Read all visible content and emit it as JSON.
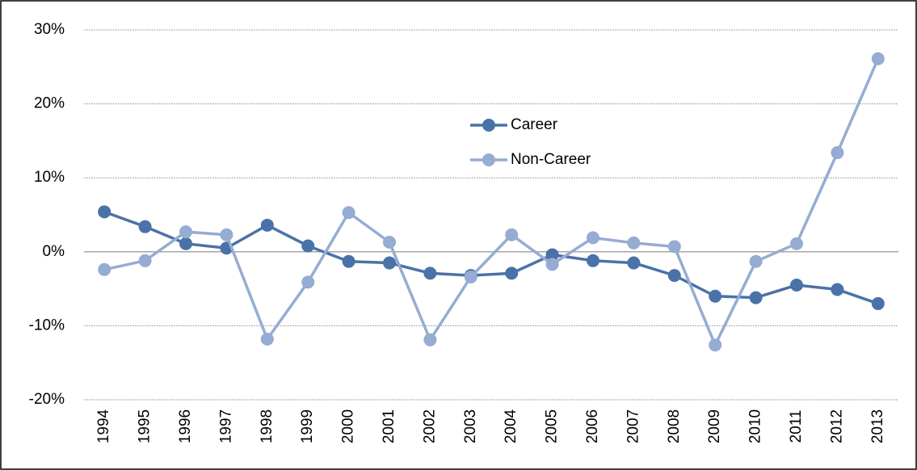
{
  "chart_data": {
    "type": "line",
    "categories": [
      "1994",
      "1995",
      "1996",
      "1997",
      "1998",
      "1999",
      "2000",
      "2001",
      "2002",
      "2003",
      "2004",
      "2005",
      "2006",
      "2007",
      "2008",
      "2009",
      "2010",
      "2011",
      "2012",
      "2013"
    ],
    "series": [
      {
        "name": "Career",
        "color": "#4a72a8",
        "values": [
          5.4,
          3.4,
          1.1,
          0.5,
          3.6,
          0.8,
          -1.3,
          -1.5,
          -2.9,
          -3.2,
          -2.9,
          -0.4,
          -1.2,
          -1.5,
          -3.2,
          -6.0,
          -6.2,
          -4.5,
          -5.1,
          -7.0
        ]
      },
      {
        "name": "Non-Career",
        "color": "#95acd3",
        "values": [
          -2.4,
          -1.2,
          2.7,
          2.3,
          -11.8,
          -4.1,
          5.3,
          1.3,
          -11.9,
          -3.4,
          2.3,
          -1.7,
          1.9,
          1.2,
          0.7,
          -12.6,
          -1.3,
          1.1,
          13.4,
          26.1
        ]
      }
    ],
    "ylim": [
      -20,
      30
    ],
    "yticks": [
      {
        "value": -20,
        "label": "-20%"
      },
      {
        "value": -10,
        "label": "-10%"
      },
      {
        "value": 0,
        "label": "0%"
      },
      {
        "value": 10,
        "label": "10%"
      },
      {
        "value": 20,
        "label": "20%"
      },
      {
        "value": 30,
        "label": "30%"
      }
    ],
    "grid": true,
    "legend": "center"
  }
}
